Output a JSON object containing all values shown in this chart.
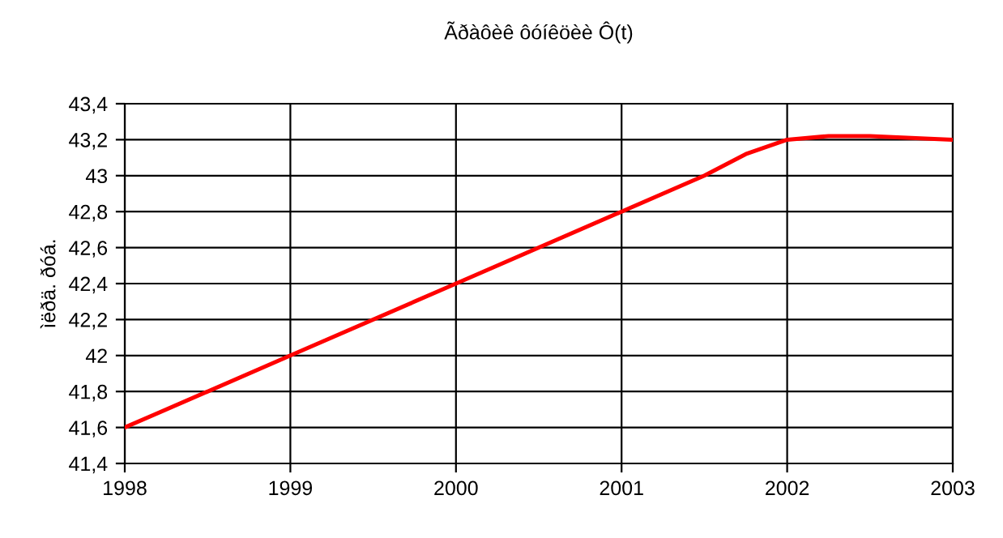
{
  "chart_data": {
    "type": "line",
    "title": "Ãðàôèê ôóíêöèè Ô(t)",
    "ylabel": "ìëðä. ðóá.",
    "x": [
      1998,
      1999,
      2000,
      2001,
      2001.5,
      2001.75,
      2002,
      2002.25,
      2002.5,
      2002.75,
      2003
    ],
    "series": [
      {
        "color": "#ff0000",
        "values": [
          41.6,
          42.0,
          42.4,
          42.8,
          43.0,
          43.12,
          43.2,
          43.22,
          43.22,
          43.21,
          43.2
        ]
      }
    ],
    "xlim": [
      1998,
      2003
    ],
    "xticks": [
      1998,
      1999,
      2000,
      2001,
      2002,
      2003
    ],
    "ylim": [
      41.4,
      43.4
    ],
    "yticks": [
      {
        "value": 41.4,
        "label": "41,4"
      },
      {
        "value": 41.6,
        "label": "41,6"
      },
      {
        "value": 41.8,
        "label": "41,8"
      },
      {
        "value": 42,
        "label": "42"
      },
      {
        "value": 42.2,
        "label": "42,2"
      },
      {
        "value": 42.4,
        "label": "42,4"
      },
      {
        "value": 42.6,
        "label": "42,6"
      },
      {
        "value": 42.8,
        "label": "42,8"
      },
      {
        "value": 43,
        "label": "43"
      },
      {
        "value": 43.2,
        "label": "43,2"
      },
      {
        "value": 43.4,
        "label": "43,4"
      }
    ],
    "grid": true,
    "line_style": "solid",
    "marker": "none"
  }
}
